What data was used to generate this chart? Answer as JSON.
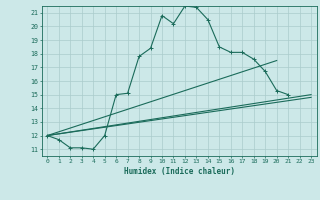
{
  "xlabel": "Humidex (Indice chaleur)",
  "ylabel": "",
  "bg_color": "#cce8e8",
  "line_color": "#1a6b5a",
  "grid_color": "#aacccc",
  "xlim": [
    -0.5,
    23.5
  ],
  "ylim": [
    10.5,
    21.5
  ],
  "yticks": [
    11,
    12,
    13,
    14,
    15,
    16,
    17,
    18,
    19,
    20,
    21
  ],
  "xticks": [
    0,
    1,
    2,
    3,
    4,
    5,
    6,
    7,
    8,
    9,
    10,
    11,
    12,
    13,
    14,
    15,
    16,
    17,
    18,
    19,
    20,
    21,
    22,
    23
  ],
  "curve1_x": [
    0,
    1,
    2,
    3,
    4,
    5,
    6,
    7,
    8,
    9,
    10,
    11,
    12,
    13,
    14,
    15,
    16,
    17,
    18,
    19,
    20,
    21
  ],
  "curve1_y": [
    12.0,
    11.7,
    11.1,
    11.1,
    11.0,
    12.0,
    15.0,
    15.1,
    17.8,
    18.4,
    20.8,
    20.2,
    21.5,
    21.4,
    20.5,
    18.5,
    18.1,
    18.1,
    17.6,
    16.7,
    15.3,
    15.0
  ],
  "curve2_x": [
    0,
    23
  ],
  "curve2_y": [
    12.0,
    15.0
  ],
  "curve3_x": [
    0,
    23
  ],
  "curve3_y": [
    12.0,
    14.8
  ],
  "curve4_x": [
    0,
    20
  ],
  "curve4_y": [
    12.0,
    17.5
  ]
}
